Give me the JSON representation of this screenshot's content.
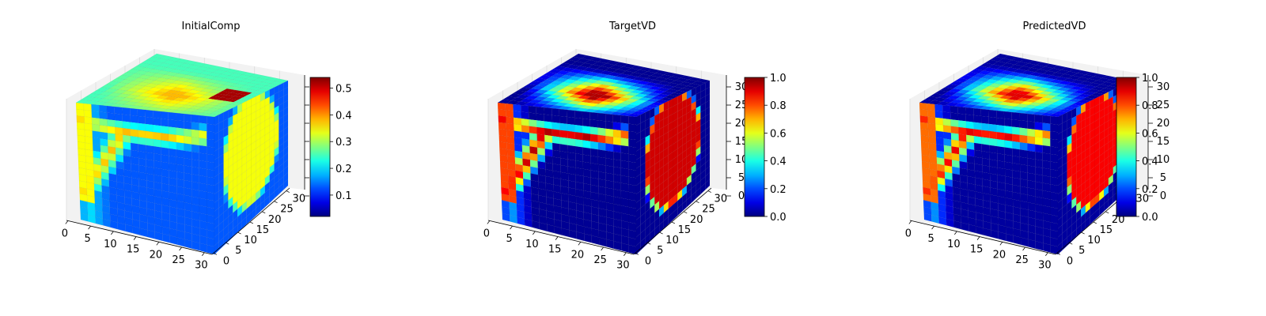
{
  "chart_data": [
    {
      "type": "heatmap",
      "title": "InitialComp",
      "x_ticks": [
        "0",
        "5",
        "10",
        "15",
        "20",
        "25",
        "30"
      ],
      "y_ticks": [
        "0",
        "5",
        "10",
        "15",
        "20",
        "25",
        "30"
      ],
      "z_ticks": [],
      "colorbar": {
        "min": 0.02,
        "max": 0.54,
        "ticks": [
          "0.1",
          "0.2",
          "0.3",
          "0.4",
          "0.5"
        ],
        "tick_values": [
          0.1,
          0.2,
          0.3,
          0.4,
          0.5
        ]
      },
      "face_values": {
        "front_base": 0.13,
        "band": 0.38,
        "side_band": 0.34,
        "top_base": 0.25,
        "hotspot": 0.52
      }
    },
    {
      "type": "heatmap",
      "title": "TargetVD",
      "x_ticks": [
        "0",
        "5",
        "10",
        "15",
        "20",
        "25",
        "30"
      ],
      "y_ticks": [
        "0",
        "5",
        "10",
        "15",
        "20",
        "25",
        "30"
      ],
      "z_ticks": [
        "0",
        "5",
        "10",
        "15",
        "20",
        "25",
        "30"
      ],
      "colorbar": {
        "min": 0.0,
        "max": 1.0,
        "ticks": [
          "0.0",
          "0.2",
          "0.4",
          "0.6",
          "0.8",
          "1.0"
        ],
        "tick_values": [
          0,
          0.2,
          0.4,
          0.6,
          0.8,
          1.0
        ]
      },
      "face_values": {
        "front_base": 0.02,
        "band": 0.95,
        "side_band": 0.92,
        "top_base": 0.02,
        "hotspot": 0.0
      }
    },
    {
      "type": "heatmap",
      "title": "PredictedVD",
      "x_ticks": [
        "0",
        "5",
        "10",
        "15",
        "20",
        "25",
        "30"
      ],
      "y_ticks": [
        "0",
        "5",
        "10",
        "15",
        "20",
        "25",
        "30"
      ],
      "z_ticks": [
        "0",
        "5",
        "10",
        "15",
        "20",
        "25",
        "30"
      ],
      "colorbar": {
        "min": 0.0,
        "max": 1.0,
        "ticks": [
          "0.0",
          "0.2",
          "0.4",
          "0.6",
          "0.8",
          "1.0"
        ],
        "tick_values": [
          0,
          0.2,
          0.4,
          0.6,
          0.8,
          1.0
        ]
      },
      "face_values": {
        "front_base": 0.03,
        "band": 0.9,
        "side_band": 0.88,
        "top_base": 0.03,
        "hotspot": 0.0
      }
    }
  ]
}
